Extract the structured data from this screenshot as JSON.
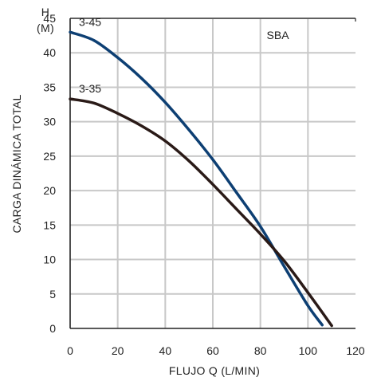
{
  "chart_data": {
    "type": "line",
    "model_label": "SBA",
    "xlabel": "FLUJO Q (L/MIN)",
    "ylabel": "CARGA DINÁMICA TOTAL",
    "y_unit_top": "H",
    "y_unit_bottom": "(M)",
    "xlim": [
      0,
      120
    ],
    "ylim": [
      0,
      45
    ],
    "x_ticks": [
      0,
      20,
      40,
      60,
      80,
      100,
      120
    ],
    "y_ticks": [
      0,
      5,
      10,
      15,
      20,
      25,
      30,
      35,
      40,
      45
    ],
    "grid": true,
    "series": [
      {
        "name": "3-45",
        "color": "#0d3f73",
        "points": [
          [
            0,
            43.0
          ],
          [
            10,
            41.8
          ],
          [
            20,
            39.3
          ],
          [
            30,
            36.3
          ],
          [
            40,
            32.8
          ],
          [
            50,
            28.8
          ],
          [
            60,
            24.5
          ],
          [
            70,
            19.7
          ],
          [
            80,
            14.8
          ],
          [
            90,
            9.0
          ],
          [
            100,
            3.3
          ],
          [
            106,
            0.5
          ]
        ]
      },
      {
        "name": "3-35",
        "color": "#2a1a17",
        "points": [
          [
            0,
            33.3
          ],
          [
            10,
            32.7
          ],
          [
            20,
            31.2
          ],
          [
            30,
            29.4
          ],
          [
            40,
            27.2
          ],
          [
            50,
            24.3
          ],
          [
            60,
            20.9
          ],
          [
            70,
            17.3
          ],
          [
            80,
            13.7
          ],
          [
            90,
            9.8
          ],
          [
            100,
            5.2
          ],
          [
            110,
            0.4
          ]
        ]
      }
    ]
  }
}
